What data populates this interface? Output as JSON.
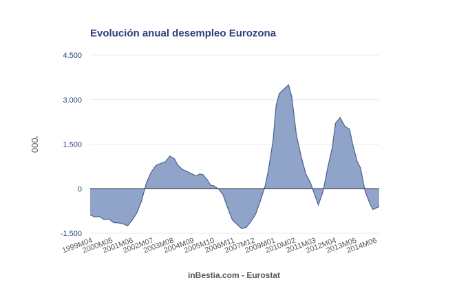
{
  "chart_data": {
    "type": "area",
    "title": "Evolución anual desempleo Eurozona",
    "ylabel": "'000",
    "source": "inBestia.com - Eurostat",
    "ylim": [
      -1500,
      4500
    ],
    "yticks": [
      -1500,
      0,
      1500,
      3000,
      4500
    ],
    "ytick_labels": [
      "-1.500",
      "0",
      "1.500",
      "3.000",
      "4.500"
    ],
    "xrange": [
      "1999-04",
      "2014-09"
    ],
    "xtick_labels": [
      "1999M04",
      "2000M05",
      "2001M06",
      "2002M07",
      "2003M08",
      "2004M09",
      "2005M10",
      "2006M11",
      "2007M12",
      "2009M01",
      "2010M02",
      "2011M03",
      "2012M04",
      "2013M05",
      "2014M06"
    ],
    "grid": true,
    "fill_color": "#8a9fc6",
    "line_color": "#4a5f8f",
    "series": [
      {
        "points": [
          [
            "1999-04",
            -880
          ],
          [
            "1999-07",
            -950
          ],
          [
            "1999-10",
            -940
          ],
          [
            "2000-01",
            -1040
          ],
          [
            "2000-04",
            -1020
          ],
          [
            "2000-07",
            -1140
          ],
          [
            "2000-10",
            -1150
          ],
          [
            "2001-01",
            -1180
          ],
          [
            "2001-04",
            -1250
          ],
          [
            "2001-07",
            -1050
          ],
          [
            "2001-10",
            -800
          ],
          [
            "2002-01",
            -400
          ],
          [
            "2002-04",
            200
          ],
          [
            "2002-07",
            550
          ],
          [
            "2002-10",
            780
          ],
          [
            "2003-01",
            850
          ],
          [
            "2003-04",
            900
          ],
          [
            "2003-07",
            1100
          ],
          [
            "2003-10",
            1000
          ],
          [
            "2003-12",
            800
          ],
          [
            "2004-03",
            650
          ],
          [
            "2004-06",
            580
          ],
          [
            "2004-09",
            500
          ],
          [
            "2004-12",
            430
          ],
          [
            "2005-02",
            500
          ],
          [
            "2005-04",
            480
          ],
          [
            "2005-07",
            300
          ],
          [
            "2005-09",
            120
          ],
          [
            "2005-11",
            100
          ],
          [
            "2006-02",
            0
          ],
          [
            "2006-05",
            -200
          ],
          [
            "2006-08",
            -650
          ],
          [
            "2006-11",
            -1050
          ],
          [
            "2007-02",
            -1200
          ],
          [
            "2007-05",
            -1350
          ],
          [
            "2007-08",
            -1300
          ],
          [
            "2007-11",
            -1100
          ],
          [
            "2008-02",
            -850
          ],
          [
            "2008-05",
            -400
          ],
          [
            "2008-08",
            100
          ],
          [
            "2008-10",
            600
          ],
          [
            "2009-01",
            1600
          ],
          [
            "2009-03",
            2800
          ],
          [
            "2009-05",
            3200
          ],
          [
            "2009-08",
            3350
          ],
          [
            "2009-11",
            3500
          ],
          [
            "2010-01",
            3100
          ],
          [
            "2010-04",
            1800
          ],
          [
            "2010-07",
            1100
          ],
          [
            "2010-10",
            500
          ],
          [
            "2011-01",
            200
          ],
          [
            "2011-04",
            -250
          ],
          [
            "2011-06",
            -550
          ],
          [
            "2011-09",
            -100
          ],
          [
            "2011-12",
            700
          ],
          [
            "2012-03",
            1400
          ],
          [
            "2012-05",
            2200
          ],
          [
            "2012-08",
            2400
          ],
          [
            "2012-11",
            2100
          ],
          [
            "2013-02",
            2000
          ],
          [
            "2013-04",
            1500
          ],
          [
            "2013-07",
            900
          ],
          [
            "2013-09",
            700
          ],
          [
            "2013-12",
            -100
          ],
          [
            "2014-03",
            -500
          ],
          [
            "2014-05",
            -700
          ],
          [
            "2014-07",
            -650
          ],
          [
            "2014-09",
            -600
          ]
        ]
      }
    ]
  }
}
